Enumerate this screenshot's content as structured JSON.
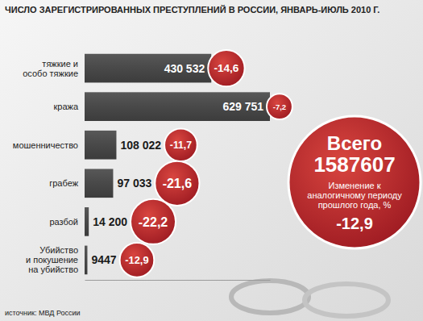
{
  "chart_data": {
    "type": "bar",
    "orientation": "horizontal",
    "title": "ЧИСЛО ЗАРЕГИСТРИРОВАННЫХ ПРЕСТУПЛЕНИЙ В РОССИИ, ЯНВАРЬ-ИЮЛЬ 2010 Г.",
    "categories": [
      "тяжкие и\nособо тяжкие",
      "кража",
      "мошенничество",
      "грабеж",
      "разбой",
      "Убийство\nи покушение\nна убийство"
    ],
    "values": [
      430532,
      629751,
      108022,
      97033,
      14200,
      9447
    ],
    "value_labels": [
      "430 532",
      "629 751",
      "108 022",
      "97 033",
      "14 200",
      "9447"
    ],
    "data_labels": true,
    "tick_labels": "y",
    "color": "#4a4a4a",
    "xlim": [
      0,
      629751
    ],
    "xticks": [],
    "changes": [
      -14.6,
      -7.2,
      -11.7,
      -21.6,
      -22.2,
      -12.9
    ],
    "change_labels": [
      "-14,6",
      "-7,2",
      "-11,7",
      "-21,6",
      "-22,2",
      "-12,9"
    ],
    "total": {
      "label": "Всего",
      "value": 1587607,
      "note": "Изменение к аналогичному периоду прошлого года, %",
      "change": -12.9,
      "change_label": "-12,9"
    },
    "source": "источник: МВД России"
  }
}
